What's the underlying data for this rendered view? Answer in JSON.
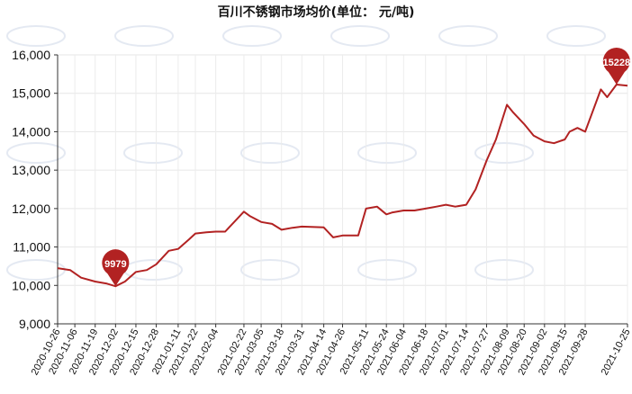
{
  "chart_data": {
    "type": "line",
    "title": "百川不锈钢市场均价(单位：  元/吨)",
    "ylim": [
      9000,
      16000
    ],
    "y_ticks": [
      9000,
      10000,
      11000,
      12000,
      13000,
      14000,
      15000,
      16000
    ],
    "y_tick_labels": [
      "9,000",
      "10,000",
      "11,000",
      "12,000",
      "13,000",
      "14,000",
      "15,000",
      "16,000"
    ],
    "x_tick_labels": [
      "2020-10-26",
      "2020-11-06",
      "2020-11-19",
      "2020-12-02",
      "2020-12-15",
      "2020-12-28",
      "2021-01-11",
      "2021-01-22",
      "2021-02-04",
      "2021-02-22",
      "2021-03-05",
      "2021-03-18",
      "2021-03-31",
      "2021-04-14",
      "2021-04-26",
      "2021-05-11",
      "2021-05-24",
      "2021-06-04",
      "2021-06-18",
      "2021-07-01",
      "2021-07-14",
      "2021-07-27",
      "2021-08-09",
      "2021-08-20",
      "2021-09-02",
      "2021-09-15",
      "2021-09-28",
      "2021-10-25"
    ],
    "grid": true,
    "line_color": "#b22222",
    "series": [
      {
        "x": [
          "2020-10-26",
          "2020-11-03",
          "2020-11-10",
          "2020-11-19",
          "2020-11-26",
          "2020-12-02",
          "2020-12-08",
          "2020-12-15",
          "2020-12-22",
          "2020-12-28",
          "2021-01-05",
          "2021-01-11",
          "2021-01-18",
          "2021-01-22",
          "2021-01-29",
          "2021-02-04",
          "2021-02-10",
          "2021-02-22",
          "2021-02-26",
          "2021-03-05",
          "2021-03-12",
          "2021-03-18",
          "2021-03-25",
          "2021-03-31",
          "2021-04-08",
          "2021-04-14",
          "2021-04-20",
          "2021-04-26",
          "2021-05-06",
          "2021-05-11",
          "2021-05-18",
          "2021-05-24",
          "2021-05-28",
          "2021-06-04",
          "2021-06-11",
          "2021-06-18",
          "2021-06-25",
          "2021-07-01",
          "2021-07-07",
          "2021-07-14",
          "2021-07-20",
          "2021-07-27",
          "2021-08-02",
          "2021-08-09",
          "2021-08-13",
          "2021-08-20",
          "2021-08-26",
          "2021-09-02",
          "2021-09-08",
          "2021-09-15",
          "2021-09-18",
          "2021-09-23",
          "2021-09-28",
          "2021-10-08",
          "2021-10-12",
          "2021-10-18",
          "2021-10-25"
        ],
        "y": [
          10450,
          10400,
          10200,
          10100,
          10050,
          9979,
          10100,
          10350,
          10400,
          10550,
          10900,
          10950,
          11200,
          11350,
          11380,
          11400,
          11400,
          11920,
          11800,
          11650,
          11600,
          11450,
          11500,
          11530,
          11520,
          11510,
          11250,
          11300,
          11300,
          12000,
          12050,
          11850,
          11900,
          11950,
          11950,
          12000,
          12050,
          12100,
          12050,
          12100,
          12500,
          13250,
          13800,
          14700,
          14500,
          14200,
          13900,
          13750,
          13700,
          13800,
          14000,
          14100,
          14000,
          15100,
          14900,
          15228,
          15200
        ]
      }
    ],
    "annotations": [
      {
        "label": "9979",
        "x": "2020-12-02",
        "y": 9979
      },
      {
        "label": "15228",
        "x": "2021-10-18",
        "y": 15228
      }
    ]
  }
}
